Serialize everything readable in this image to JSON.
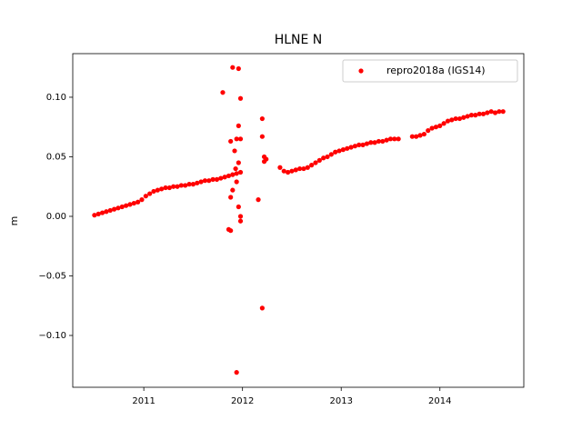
{
  "chart_data": {
    "type": "scatter",
    "title": "HLNE N",
    "ylabel": "m",
    "xlim": [
      2010.28,
      2014.85
    ],
    "xticks": [
      2011,
      2012,
      2013,
      2014
    ],
    "ylim": [
      -0.1435,
      0.1366
    ],
    "yticks": [
      {
        "value": -0.1,
        "label": "−0.10"
      },
      {
        "value": -0.05,
        "label": "−0.05"
      },
      {
        "value": 0,
        "label": "0.00"
      },
      {
        "value": 0.05,
        "label": "0.05"
      },
      {
        "value": 0.1,
        "label": "0.10"
      }
    ],
    "legend": "upper right",
    "x": [
      2010.5,
      2010.54,
      2010.58,
      2010.62,
      2010.66,
      2010.7,
      2010.74,
      2010.78,
      2010.82,
      2010.86,
      2010.9,
      2010.94,
      2010.98,
      2011.02,
      2011.06,
      2011.1,
      2011.14,
      2011.18,
      2011.22,
      2011.26,
      2011.3,
      2011.34,
      2011.38,
      2011.42,
      2011.46,
      2011.5,
      2011.54,
      2011.58,
      2011.62,
      2011.66,
      2011.7,
      2011.74,
      2011.78,
      2011.82,
      2011.86,
      2011.9,
      2011.94,
      2011.98,
      2011.8,
      2011.9,
      2011.96,
      2011.98,
      2011.96,
      2011.94,
      2011.98,
      2011.92,
      2011.88,
      2011.96,
      2011.93,
      2011.88,
      2011.9,
      2011.96,
      2011.98,
      2011.98,
      2011.86,
      2011.88,
      2011.94,
      2012.2,
      2012.2,
      2012.22,
      2012.24,
      2012.16,
      2012.2,
      2011.94,
      2012.22,
      2012.38,
      2012.42,
      2012.46,
      2012.5,
      2012.54,
      2012.58,
      2012.62,
      2012.66,
      2012.7,
      2012.74,
      2012.78,
      2012.82,
      2012.86,
      2012.9,
      2012.94,
      2012.98,
      2013.02,
      2013.06,
      2013.1,
      2013.14,
      2013.18,
      2013.22,
      2013.26,
      2013.3,
      2013.34,
      2013.38,
      2013.42,
      2013.46,
      2013.5,
      2013.54,
      2013.58,
      2013.72,
      2013.76,
      2013.8,
      2013.84,
      2013.88,
      2013.92,
      2013.96,
      2014.0,
      2014.04,
      2014.08,
      2014.12,
      2014.16,
      2014.2,
      2014.24,
      2014.28,
      2014.32,
      2014.36,
      2014.4,
      2014.44,
      2014.48,
      2014.52,
      2014.56,
      2014.6,
      2014.64
    ],
    "series": [
      {
        "name": "repro2018a (IGS14)",
        "color": "#ff0000",
        "values": [
          0.001,
          0.002,
          0.003,
          0.004,
          0.005,
          0.006,
          0.007,
          0.008,
          0.009,
          0.01,
          0.011,
          0.012,
          0.014,
          0.017,
          0.019,
          0.021,
          0.022,
          0.023,
          0.024,
          0.024,
          0.025,
          0.025,
          0.026,
          0.026,
          0.027,
          0.027,
          0.028,
          0.029,
          0.03,
          0.03,
          0.031,
          0.031,
          0.032,
          0.033,
          0.034,
          0.035,
          0.036,
          0.037,
          0.104,
          0.125,
          0.124,
          0.099,
          0.076,
          0.065,
          0.065,
          0.055,
          0.063,
          0.045,
          0.04,
          0.016,
          0.022,
          0.008,
          -0.004,
          0.0,
          -0.011,
          -0.012,
          -0.131,
          0.082,
          0.067,
          0.05,
          0.048,
          0.014,
          -0.077,
          0.029,
          0.046,
          0.041,
          0.038,
          0.037,
          0.038,
          0.039,
          0.04,
          0.04,
          0.041,
          0.043,
          0.045,
          0.047,
          0.049,
          0.05,
          0.052,
          0.054,
          0.055,
          0.056,
          0.057,
          0.058,
          0.059,
          0.06,
          0.06,
          0.061,
          0.062,
          0.062,
          0.063,
          0.063,
          0.064,
          0.065,
          0.065,
          0.065,
          0.067,
          0.067,
          0.068,
          0.069,
          0.072,
          0.074,
          0.075,
          0.076,
          0.078,
          0.08,
          0.081,
          0.082,
          0.082,
          0.083,
          0.084,
          0.085,
          0.085,
          0.086,
          0.086,
          0.087,
          0.088,
          0.087,
          0.088,
          0.088
        ]
      }
    ]
  }
}
